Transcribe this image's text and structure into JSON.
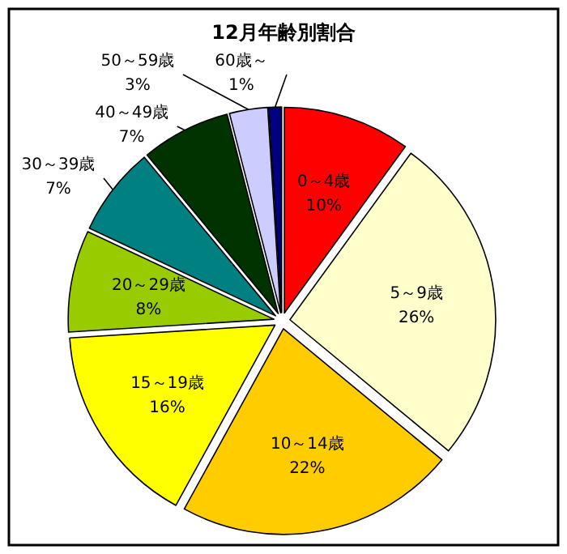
{
  "chart_data": {
    "type": "pie",
    "title": "12月年齢別割合",
    "categories": [
      "0～4歳",
      "5～9歳",
      "10～14歳",
      "15～19歳",
      "20～29歳",
      "30～39歳",
      "40～49歳",
      "50～59歳",
      "60歳～"
    ],
    "values": [
      10,
      26,
      22,
      16,
      8,
      7,
      7,
      3,
      1
    ],
    "value_labels": [
      "10%",
      "26%",
      "22%",
      "16%",
      "8%",
      "7%",
      "7%",
      "3%",
      "1%"
    ],
    "colors": [
      "#ff0000",
      "#ffffcc",
      "#ffcc00",
      "#ffff00",
      "#99cc00",
      "#008080",
      "#003300",
      "#ccccff",
      "#000080"
    ]
  }
}
